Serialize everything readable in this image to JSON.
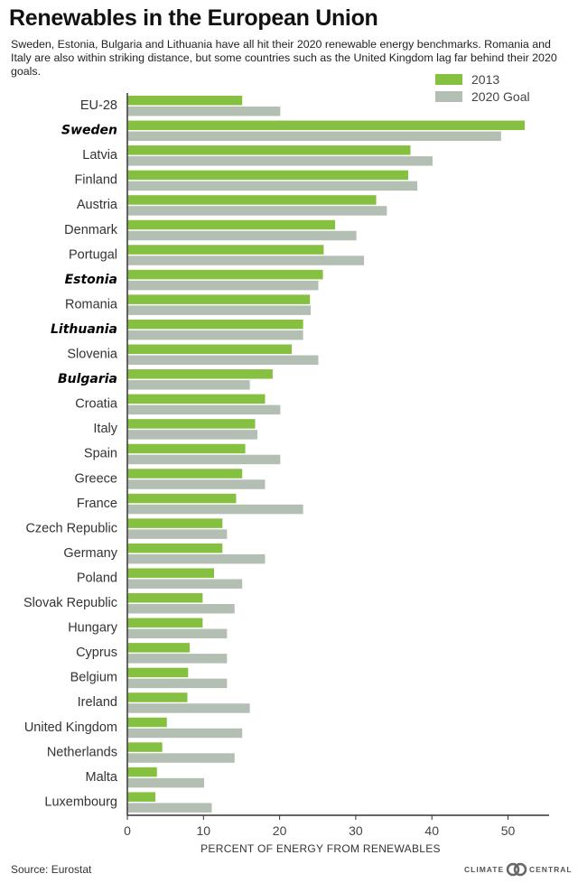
{
  "title": "Renewables in the European Union",
  "subtitle": "Sweden, Estonia, Bulgaria and Lithuania have all hit their 2020 renewable energy benchmarks. Romania and Italy are also within striking distance, but some countries such as the United Kingdom lag far behind their 2020 goals.",
  "source": "Source: Eurostat",
  "brand": {
    "left": "CLIMATE",
    "right": "CENTRAL"
  },
  "colors": {
    "series_2013": "#86c040",
    "series_goal": "#b3bfb3",
    "axis": "#333333"
  },
  "chart_data": {
    "type": "bar",
    "orientation": "horizontal",
    "xlabel": "PERCENT OF ENERGY FROM RENEWABLES",
    "ylabel": "",
    "xlim": [
      0,
      55
    ],
    "xticks": [
      0,
      10,
      20,
      30,
      40,
      50
    ],
    "grid": false,
    "legend_position": "top-right",
    "highlighted": [
      "Sweden",
      "Estonia",
      "Lithuania",
      "Bulgaria"
    ],
    "categories": [
      "EU-28",
      "Sweden",
      "Latvia",
      "Finland",
      "Austria",
      "Denmark",
      "Portugal",
      "Estonia",
      "Romania",
      "Lithuania",
      "Slovenia",
      "Bulgaria",
      "Croatia",
      "Italy",
      "Spain",
      "Greece",
      "France",
      "Czech Republic",
      "Germany",
      "Poland",
      "Slovak Republic",
      "Hungary",
      "Cyprus",
      "Belgium",
      "Ireland",
      "United Kingdom",
      "Netherlands",
      "Malta",
      "Luxembourg"
    ],
    "series": [
      {
        "name": "2013",
        "values": [
          15,
          52.1,
          37.1,
          36.8,
          32.6,
          27.2,
          25.7,
          25.6,
          23.9,
          23.0,
          21.5,
          19.0,
          18.0,
          16.7,
          15.4,
          15.0,
          14.2,
          12.4,
          12.4,
          11.3,
          9.8,
          9.8,
          8.1,
          7.9,
          7.8,
          5.1,
          4.5,
          3.8,
          3.6
        ]
      },
      {
        "name": "2020 Goal",
        "values": [
          20,
          49,
          40,
          38,
          34,
          30,
          31,
          25,
          24,
          23,
          25,
          16,
          20,
          17,
          20,
          18,
          23,
          13,
          18,
          15,
          14,
          13,
          13,
          13,
          16,
          15,
          14,
          10,
          11
        ]
      }
    ]
  }
}
